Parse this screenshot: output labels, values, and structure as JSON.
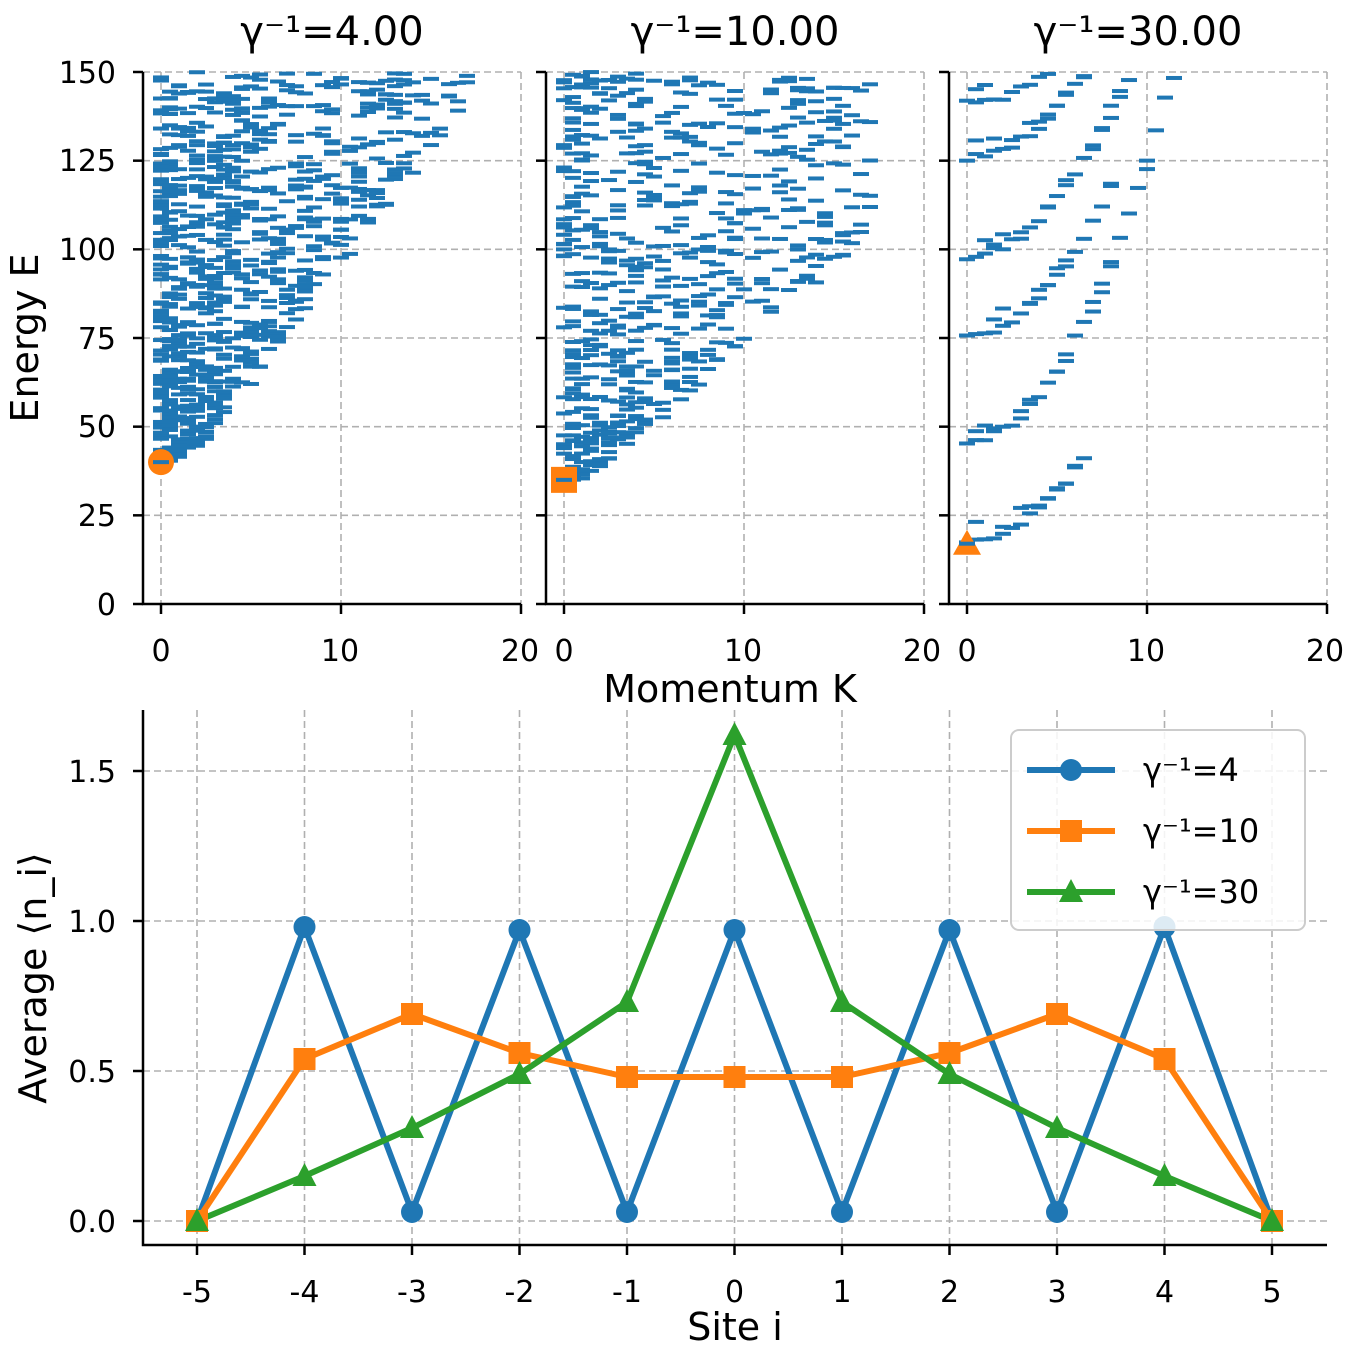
{
  "chart_data": [
    {
      "type": "scatter",
      "title": "γ⁻¹=4.00",
      "xlabel": "",
      "ylabel": "Energy E",
      "xlim": [
        -1,
        20
      ],
      "ylim": [
        0,
        150
      ],
      "xticks": [
        "0",
        "10",
        "20"
      ],
      "yticks": [
        "0",
        "25",
        "50",
        "75",
        "100",
        "125",
        "150"
      ],
      "grid": true,
      "marker_color": "#1f77b4",
      "ground_state": {
        "x": 0,
        "y": 40,
        "marker": "circle",
        "color": "#ff7f0e"
      },
      "spectrum_density": {
        "k_max": 18,
        "e_min": 40,
        "e_max": 150,
        "count": 900,
        "edge_slope": 6.5
      }
    },
    {
      "type": "scatter",
      "title": "γ⁻¹=10.00",
      "xlabel": "Momentum K",
      "ylabel": "",
      "xlim": [
        -1,
        20
      ],
      "ylim": [
        0,
        150
      ],
      "xticks": [
        "0",
        "10",
        "20"
      ],
      "grid": true,
      "marker_color": "#1f77b4",
      "ground_state": {
        "x": 0,
        "y": 35,
        "marker": "square",
        "color": "#ff7f0e"
      },
      "spectrum_density": {
        "k_max": 17,
        "e_min": 35,
        "e_max": 150,
        "count": 650,
        "edge_slope": 4.5
      }
    },
    {
      "type": "scatter",
      "title": "γ⁻¹=30.00",
      "xlabel": "",
      "ylabel": "",
      "xlim": [
        -1,
        20
      ],
      "ylim": [
        0,
        150
      ],
      "xticks": [
        "0",
        "10",
        "20"
      ],
      "grid": true,
      "marker_color": "#1f77b4",
      "ground_state": {
        "x": 0,
        "y": 17,
        "marker": "triangle",
        "color": "#ff7f0e"
      },
      "bands": [
        {
          "e0": 17,
          "slope": 1.1,
          "kmax": 6
        },
        {
          "e0": 45,
          "slope": 1.6,
          "kmax": 11
        },
        {
          "e0": 75,
          "slope": 1.3,
          "kmax": 8
        },
        {
          "e0": 97,
          "slope": 1.3,
          "kmax": 12
        },
        {
          "e0": 125,
          "slope": 1.1,
          "kmax": 16
        },
        {
          "e0": 140,
          "slope": 0.9,
          "kmax": 14
        }
      ]
    },
    {
      "type": "line",
      "xlabel": "Site i",
      "ylabel": "Average ⟨n_i⟩",
      "x": [
        -5,
        -4,
        -3,
        -2,
        -1,
        0,
        1,
        2,
        3,
        4,
        5
      ],
      "xtick_labels": [
        "-5",
        "-4",
        "-3",
        "-2",
        "-1",
        "0",
        "1",
        "2",
        "3",
        "4",
        "5"
      ],
      "ylim": [
        -0.08,
        1.7
      ],
      "yticks": [
        "0.0",
        "0.5",
        "1.0",
        "1.5"
      ],
      "grid": true,
      "legend_position": "top-right",
      "series": [
        {
          "name": "γ⁻¹=4",
          "color": "#1f77b4",
          "marker": "circle",
          "values": [
            0.0,
            0.98,
            0.03,
            0.97,
            0.03,
            0.97,
            0.03,
            0.97,
            0.03,
            0.98,
            0.0
          ]
        },
        {
          "name": "γ⁻¹=10",
          "color": "#ff7f0e",
          "marker": "square",
          "values": [
            0.0,
            0.54,
            0.69,
            0.56,
            0.48,
            0.48,
            0.48,
            0.56,
            0.69,
            0.54,
            0.0
          ]
        },
        {
          "name": "γ⁻¹=30",
          "color": "#2ca02c",
          "marker": "triangle",
          "values": [
            0.0,
            0.15,
            0.31,
            0.49,
            0.73,
            1.62,
            0.73,
            0.49,
            0.31,
            0.15,
            0.0
          ]
        }
      ]
    }
  ]
}
